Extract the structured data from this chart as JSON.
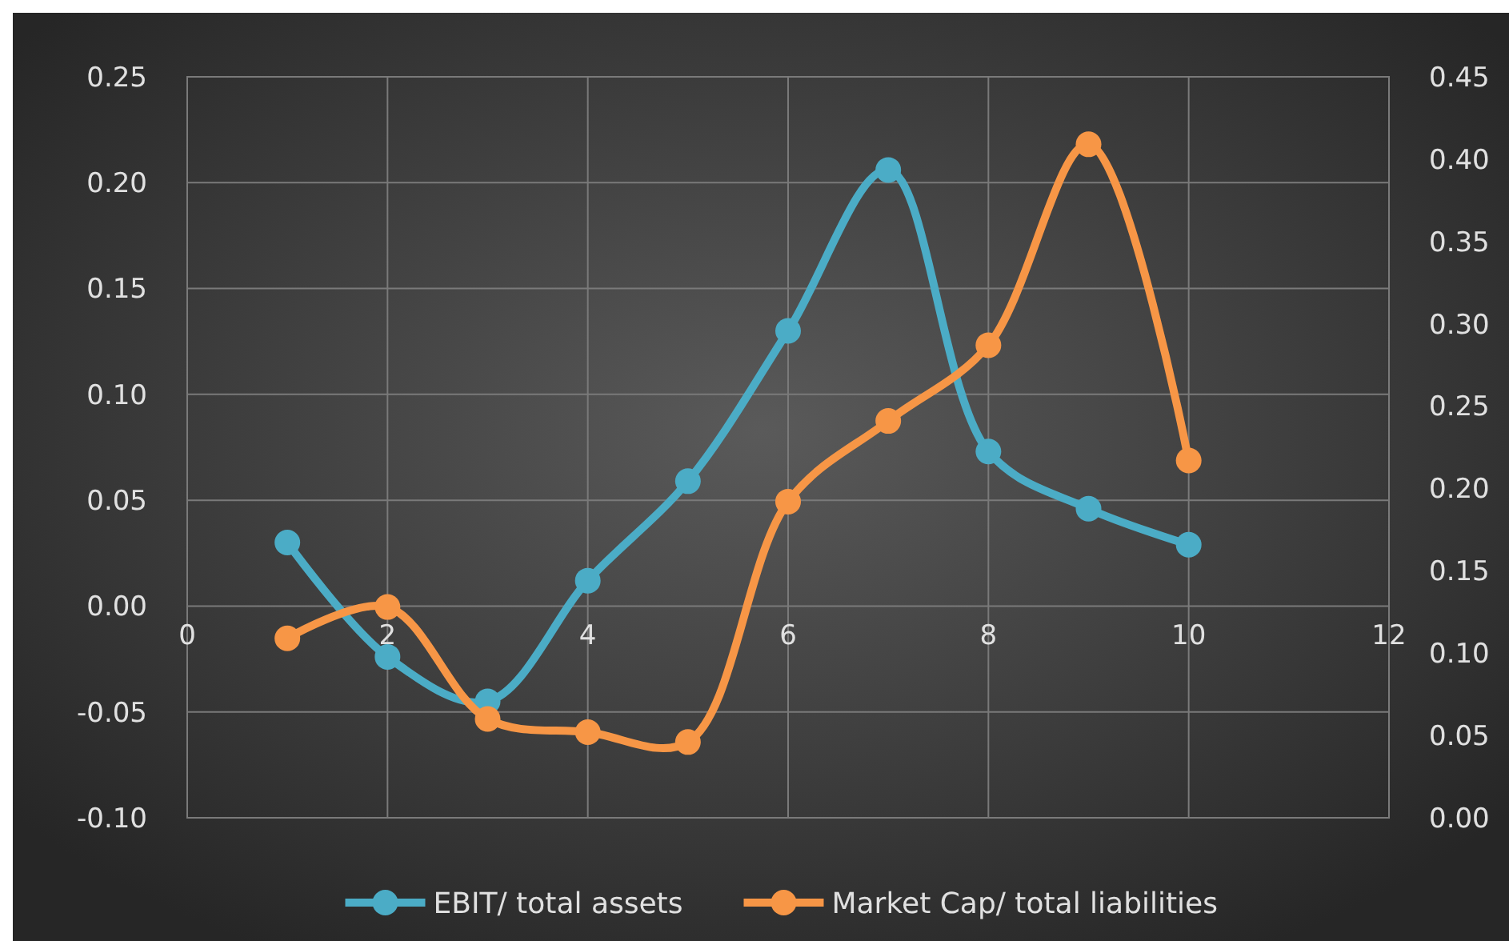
{
  "chart_data": {
    "type": "line",
    "x": [
      1,
      2,
      3,
      4,
      5,
      6,
      7,
      8,
      9,
      10
    ],
    "series": [
      {
        "name": "EBIT/ total assets",
        "color": "#4bacc6",
        "values": [
          0.03,
          -0.024,
          -0.045,
          0.012,
          0.059,
          0.13,
          0.206,
          0.073,
          0.046,
          0.029
        ]
      },
      {
        "name": "Market Cap/ total liabilities",
        "color": "#f79646",
        "axis": "y2",
        "values": [
          0.109,
          0.128,
          0.06,
          0.052,
          0.046,
          0.192,
          0.241,
          0.287,
          0.409,
          0.217
        ]
      }
    ],
    "xlim": [
      0,
      12
    ],
    "xticks": [
      0,
      2,
      4,
      6,
      8,
      10,
      12
    ],
    "ylim": [
      -0.1,
      0.25
    ],
    "yticks": [
      {
        "value": -0.1,
        "label": "-0.10"
      },
      {
        "value": -0.05,
        "label": "-0.05"
      },
      {
        "value": 0,
        "label": "0.00"
      },
      {
        "value": 0.05,
        "label": "0.05"
      },
      {
        "value": 0.1,
        "label": "0.10"
      },
      {
        "value": 0.15,
        "label": "0.15"
      },
      {
        "value": 0.2,
        "label": "0.20"
      },
      {
        "value": 0.25,
        "label": "0.25"
      }
    ],
    "y2lim": [
      0,
      0.45
    ],
    "y2ticks": [
      {
        "value": 0,
        "label": "0.00"
      },
      {
        "value": 0.05,
        "label": "0.05"
      },
      {
        "value": 0.1,
        "label": "0.10"
      },
      {
        "value": 0.15,
        "label": "0.15"
      },
      {
        "value": 0.2,
        "label": "0.20"
      },
      {
        "value": 0.25,
        "label": "0.25"
      },
      {
        "value": 0.3,
        "label": "0.30"
      },
      {
        "value": 0.35,
        "label": "0.35"
      },
      {
        "value": 0.4,
        "label": "0.40"
      },
      {
        "value": 0.45,
        "label": "0.45"
      }
    ],
    "grid": true,
    "legend": "bottom",
    "marker": "circle",
    "line_style": "solid"
  }
}
